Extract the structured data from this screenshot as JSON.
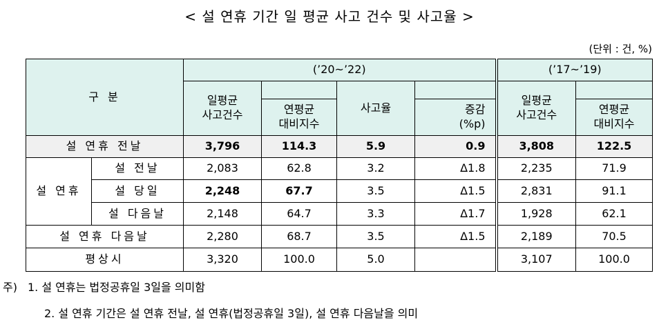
{
  "title": "< 설 연휴 기간 일 평균 사고 건수 및 사고율 >",
  "unit": "(단위 : 건, %)",
  "header": {
    "category": "구 분",
    "period_recent": "(’20~’22)",
    "period_past": "(’17~’19)",
    "columns": [
      "일평균\n사고건수",
      "연평균\n대비지수",
      "사고율",
      "증감\n(%p)",
      "일평균\n사고건수",
      "연평균\n대비지수"
    ]
  },
  "table": {
    "rows": [
      {
        "label": "설 연휴 전날",
        "cells": [
          "3,796",
          "114.3",
          "5.9",
          "0.9",
          "3,808",
          "122.5"
        ]
      },
      {
        "group": "설 연휴",
        "label": "설 전날",
        "cells": [
          "2,083",
          "62.8",
          "3.2",
          "Δ1.8",
          "2,235",
          "71.9"
        ]
      },
      {
        "label": "설 당일",
        "cells": [
          "2,248",
          "67.7",
          "3.5",
          "Δ1.5",
          "2,831",
          "91.1"
        ]
      },
      {
        "label": "설 다음날",
        "cells": [
          "2,148",
          "64.7",
          "3.3",
          "Δ1.7",
          "1,928",
          "62.1"
        ]
      },
      {
        "label": "설 연휴 다음날",
        "cells": [
          "2,280",
          "68.7",
          "3.5",
          "Δ1.5",
          "2,189",
          "70.5"
        ]
      },
      {
        "label": "평상시",
        "cells": [
          "3,320",
          "100.0",
          "5.0",
          null,
          "3,107",
          "100.0"
        ]
      }
    ]
  },
  "notes": {
    "prefix": "주)",
    "items": [
      "1. 설 연휴는 법정공휴일 3일을 의미함",
      "2. 설 연휴 기간은 설 연휴 전날, 설 연휴(법정공휴일 3일), 설 연휴 다음날을 의미"
    ]
  }
}
